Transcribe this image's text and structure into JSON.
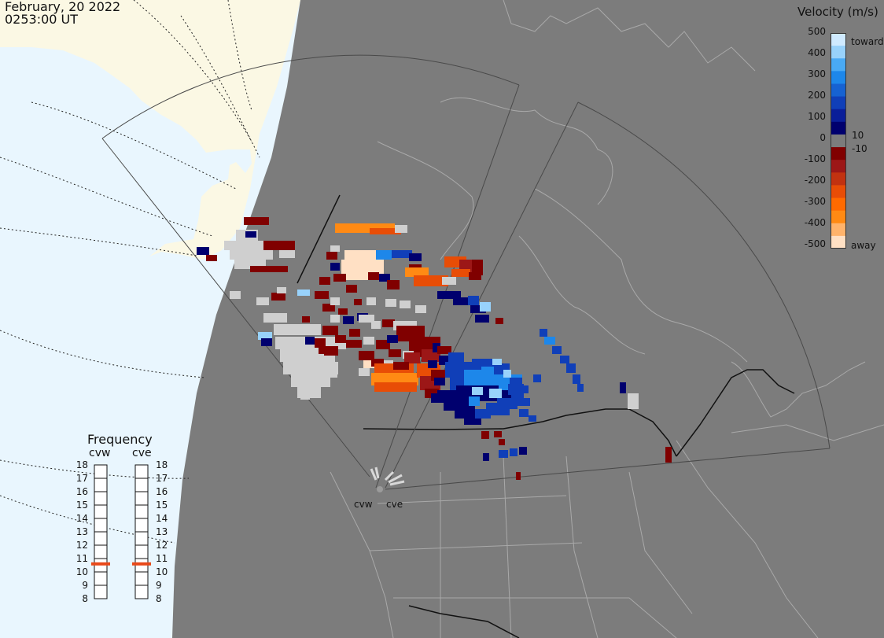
{
  "header": {
    "date": "February, 20 2022",
    "time": "0253:00 UT"
  },
  "colorbar": {
    "title": "Velocity (m/s)",
    "ticks": [
      "500",
      "400",
      "300",
      "200",
      "100",
      "10",
      "0",
      "-10",
      "-100",
      "-200",
      "-300",
      "-400",
      "-500"
    ],
    "toward_label": "toward",
    "away_label": "away",
    "colors": [
      "#ffe0c4",
      "#ffb36b",
      "#ff8a14",
      "#ff6a00",
      "#e84d06",
      "#c23210",
      "#9c1717",
      "#800000",
      "#7c7c7c",
      "#00006e",
      "#0a1e99",
      "#103fb8",
      "#1662d2",
      "#1d87ea",
      "#49aaf5",
      "#98d2fb",
      "#cfeaff"
    ]
  },
  "frequency": {
    "title": "Frequency",
    "columns": [
      {
        "name": "cvw",
        "value_mhz": 10.6
      },
      {
        "name": "cve",
        "value_mhz": 10.6
      }
    ],
    "scale": [
      "18",
      "17",
      "16",
      "15",
      "14",
      "13",
      "12",
      "11",
      "10",
      "9",
      "8"
    ],
    "marker_color": "#e8491a"
  },
  "radars": [
    {
      "name": "cvw"
    },
    {
      "name": "cve"
    }
  ],
  "colors": {
    "ocean": "#e9f6fe",
    "night_land": "#7c7c7c",
    "day_land": "#fbf8e4",
    "boundary": "#a9a9a9",
    "ground_scatter": "#cfcfcf"
  }
}
